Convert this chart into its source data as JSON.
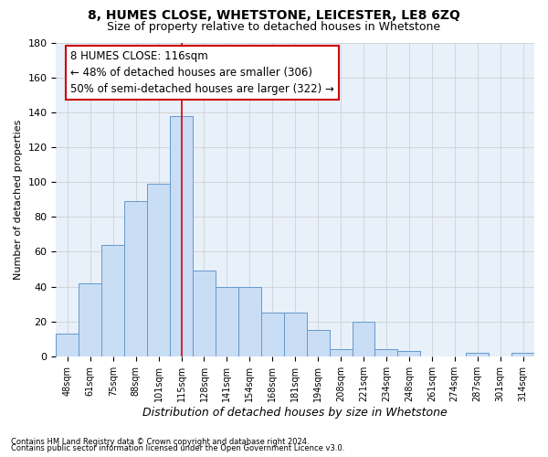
{
  "title1": "8, HUMES CLOSE, WHETSTONE, LEICESTER, LE8 6ZQ",
  "title2": "Size of property relative to detached houses in Whetstone",
  "xlabel": "Distribution of detached houses by size in Whetstone",
  "ylabel": "Number of detached properties",
  "categories": [
    "48sqm",
    "61sqm",
    "75sqm",
    "88sqm",
    "101sqm",
    "115sqm",
    "128sqm",
    "141sqm",
    "154sqm",
    "168sqm",
    "181sqm",
    "194sqm",
    "208sqm",
    "221sqm",
    "234sqm",
    "248sqm",
    "261sqm",
    "274sqm",
    "287sqm",
    "301sqm",
    "314sqm"
  ],
  "values": [
    13,
    42,
    64,
    89,
    99,
    138,
    49,
    40,
    40,
    25,
    25,
    15,
    4,
    20,
    4,
    3,
    0,
    0,
    2,
    0,
    2
  ],
  "bar_color": "#c9ddf5",
  "bar_edge_color": "#6699cc",
  "highlight_index": 5,
  "highlight_line_color": "#dd0000",
  "ylim": [
    0,
    180
  ],
  "yticks": [
    0,
    20,
    40,
    60,
    80,
    100,
    120,
    140,
    160,
    180
  ],
  "annotation_box_text": "8 HUMES CLOSE: 116sqm\n← 48% of detached houses are smaller (306)\n50% of semi-detached houses are larger (322) →",
  "annotation_box_color": "#ffffff",
  "annotation_box_edge": "#cc0000",
  "footnote1": "Contains HM Land Registry data © Crown copyright and database right 2024.",
  "footnote2": "Contains public sector information licensed under the Open Government Licence v3.0.",
  "grid_color": "#cccccc",
  "background_color": "#e8f0fa"
}
